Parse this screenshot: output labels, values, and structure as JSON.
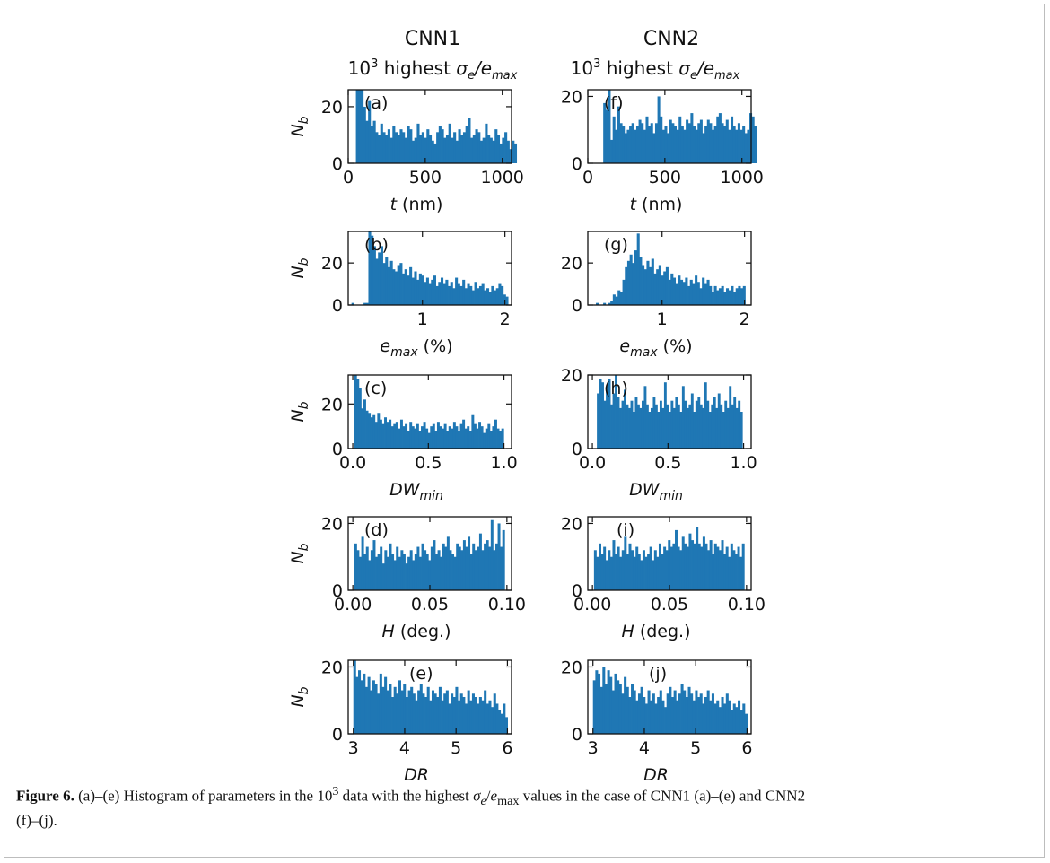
{
  "column_headers": [
    {
      "title": "CNN1",
      "subtitle_prefix": "10",
      "subtitle_sup": "3",
      "subtitle_mid": " highest ",
      "subtitle_sigma": "σ",
      "subtitle_e_sub": "e",
      "subtitle_slash": "/e",
      "subtitle_max_sub": "max"
    },
    {
      "title": "CNN2",
      "subtitle_prefix": "10",
      "subtitle_sup": "3",
      "subtitle_mid": " highest ",
      "subtitle_sigma": "σ",
      "subtitle_e_sub": "e",
      "subtitle_slash": "/e",
      "subtitle_max_sub": "max"
    }
  ],
  "ylabel": {
    "main": "N",
    "sub": "b"
  },
  "chart_data": [
    {
      "type": "bar",
      "panel": "(a)",
      "xlabel": "t (nm)",
      "xlim": [
        0,
        1060
      ],
      "ylim": [
        0,
        26
      ],
      "xticks": [
        0,
        500,
        1000
      ],
      "yticks": [
        0,
        20
      ],
      "x_start": 50,
      "bin_width": 15.8,
      "values": [
        26,
        26,
        26,
        20,
        15,
        22,
        13,
        15,
        11,
        10,
        14,
        11,
        10,
        12,
        9,
        13,
        11,
        10,
        12,
        11,
        9,
        13,
        12,
        8,
        9,
        14,
        10,
        11,
        9,
        12,
        10,
        8,
        7,
        11,
        13,
        12,
        9,
        10,
        14,
        9,
        11,
        8,
        12,
        10,
        11,
        13,
        16,
        9,
        10,
        12,
        11,
        8,
        9,
        14,
        10,
        9,
        8,
        12,
        10,
        7,
        9,
        11,
        8,
        5,
        8,
        7
      ]
    },
    {
      "type": "bar",
      "panel": "(f)",
      "xlabel": "t (nm)",
      "xlim": [
        0,
        1060
      ],
      "ylim": [
        0,
        22
      ],
      "xticks": [
        0,
        500,
        1000
      ],
      "yticks": [
        0,
        20
      ],
      "x_start": 100,
      "bin_width": 15.3,
      "values": [
        18,
        16,
        22,
        7,
        14,
        10,
        17,
        12,
        11,
        9,
        10,
        11,
        12,
        10,
        11,
        13,
        12,
        10,
        14,
        11,
        12,
        9,
        12,
        20,
        14,
        10,
        11,
        9,
        13,
        12,
        11,
        10,
        14,
        11,
        10,
        13,
        12,
        15,
        11,
        10,
        12,
        13,
        9,
        11,
        13,
        12,
        10,
        11,
        14,
        15,
        12,
        11,
        13,
        10,
        14,
        11,
        10,
        12,
        10,
        11,
        9,
        10,
        15,
        14,
        11
      ]
    },
    {
      "type": "bar",
      "panel": "(b)",
      "xlabel": "e_max (%)",
      "xlim": [
        0.1,
        2.08
      ],
      "ylim": [
        0,
        35
      ],
      "xticks": [
        1,
        2
      ],
      "yticks": [
        0,
        20
      ],
      "x_start": 0.14,
      "bin_width": 0.0292,
      "values": [
        1,
        0,
        0,
        0,
        0,
        1,
        1,
        35,
        33,
        28,
        22,
        25,
        28,
        20,
        23,
        18,
        21,
        17,
        16,
        19,
        20,
        15,
        17,
        14,
        18,
        13,
        16,
        12,
        15,
        14,
        11,
        13,
        10,
        12,
        14,
        9,
        11,
        13,
        10,
        12,
        9,
        11,
        8,
        13,
        10,
        9,
        12,
        8,
        10,
        9,
        7,
        11,
        8,
        9,
        10,
        7,
        8,
        6,
        9,
        7,
        8,
        10,
        9,
        5,
        4
      ]
    },
    {
      "type": "bar",
      "panel": "(g)",
      "xlabel": "e_max (%)",
      "xlim": [
        0.1,
        2.08
      ],
      "ylim": [
        0,
        35
      ],
      "xticks": [
        1,
        2
      ],
      "yticks": [
        0,
        20
      ],
      "x_start": 0.14,
      "bin_width": 0.0292,
      "values": [
        0,
        0,
        1,
        0,
        0,
        1,
        0,
        1,
        2,
        5,
        4,
        7,
        6,
        12,
        18,
        21,
        24,
        20,
        26,
        34,
        23,
        19,
        17,
        21,
        18,
        22,
        15,
        17,
        19,
        14,
        16,
        18,
        12,
        15,
        13,
        10,
        14,
        12,
        11,
        13,
        9,
        12,
        10,
        14,
        11,
        8,
        13,
        10,
        12,
        9,
        6,
        9,
        7,
        8,
        9,
        6,
        8,
        7,
        9,
        6,
        8,
        9,
        8,
        9
      ]
    },
    {
      "type": "bar",
      "panel": "(c)",
      "xlabel": "DW_min",
      "xlim": [
        -0.03,
        1.05
      ],
      "ylim": [
        0,
        33
      ],
      "xticks": [
        0.0,
        0.5,
        1.0
      ],
      "yticks": [
        0,
        20
      ],
      "x_start": 0.01,
      "bin_width": 0.0152,
      "values": [
        33,
        31,
        27,
        18,
        22,
        17,
        16,
        14,
        15,
        12,
        16,
        13,
        11,
        14,
        12,
        13,
        10,
        11,
        12,
        9,
        13,
        10,
        11,
        8,
        12,
        10,
        9,
        11,
        8,
        10,
        12,
        9,
        7,
        10,
        11,
        8,
        12,
        10,
        9,
        11,
        8,
        10,
        9,
        12,
        10,
        8,
        11,
        13,
        9,
        10,
        8,
        15,
        11,
        9,
        12,
        10,
        7,
        9,
        11,
        8,
        10,
        13,
        9,
        8,
        9
      ]
    },
    {
      "type": "bar",
      "panel": "(h)",
      "xlabel": "DW_min",
      "xlim": [
        -0.03,
        1.05
      ],
      "ylim": [
        0,
        20
      ],
      "xticks": [
        0.0,
        0.5,
        1.0
      ],
      "yticks": [
        0,
        20
      ],
      "x_start": 0.03,
      "bin_width": 0.0148,
      "values": [
        15,
        19,
        18,
        13,
        17,
        19,
        12,
        15,
        20,
        14,
        11,
        13,
        16,
        12,
        11,
        13,
        10,
        14,
        12,
        11,
        13,
        17,
        12,
        10,
        11,
        14,
        12,
        10,
        13,
        11,
        18,
        12,
        10,
        13,
        11,
        14,
        12,
        10,
        17,
        13,
        11,
        12,
        15,
        10,
        13,
        14,
        12,
        11,
        18,
        13,
        10,
        12,
        14,
        11,
        15,
        12,
        10,
        13,
        11,
        17,
        12,
        14,
        11,
        13,
        10
      ]
    },
    {
      "type": "bar",
      "panel": "(d)",
      "xlabel": "H (deg.)",
      "xlim": [
        -0.003,
        0.103
      ],
      "ylim": [
        0,
        22
      ],
      "xticks": [
        0.0,
        0.05,
        0.1
      ],
      "yticks": [
        0,
        20
      ],
      "x_start": 0.001,
      "bin_width": 0.0015,
      "values": [
        14,
        12,
        10,
        16,
        11,
        13,
        9,
        12,
        15,
        10,
        11,
        13,
        8,
        12,
        10,
        14,
        11,
        9,
        13,
        10,
        12,
        11,
        8,
        10,
        12,
        9,
        11,
        13,
        10,
        14,
        12,
        11,
        9,
        13,
        15,
        11,
        12,
        10,
        14,
        13,
        16,
        12,
        11,
        10,
        14,
        13,
        12,
        15,
        13,
        16,
        11,
        14,
        12,
        13,
        17,
        12,
        14,
        15,
        13,
        21,
        12,
        14,
        20,
        13,
        18
      ]
    },
    {
      "type": "bar",
      "panel": "(i)",
      "xlabel": "H (deg.)",
      "xlim": [
        -0.003,
        0.103
      ],
      "ylim": [
        0,
        22
      ],
      "xticks": [
        0.0,
        0.05,
        0.1
      ],
      "yticks": [
        0,
        20
      ],
      "x_start": 0.001,
      "bin_width": 0.0015,
      "values": [
        12,
        10,
        14,
        11,
        13,
        9,
        12,
        10,
        15,
        11,
        13,
        10,
        12,
        16,
        11,
        14,
        12,
        10,
        13,
        11,
        9,
        12,
        10,
        11,
        13,
        9,
        12,
        10,
        14,
        11,
        13,
        12,
        15,
        13,
        14,
        18,
        13,
        12,
        16,
        14,
        13,
        17,
        15,
        14,
        19,
        14,
        13,
        16,
        14,
        12,
        15,
        11,
        14,
        13,
        12,
        15,
        11,
        13,
        10,
        14,
        12,
        11,
        13,
        10,
        14
      ]
    },
    {
      "type": "bar",
      "panel": "(e)",
      "xlabel": "DR",
      "xlim": [
        2.9,
        6.08
      ],
      "ylim": [
        0,
        22
      ],
      "xticks": [
        3,
        4,
        5,
        6
      ],
      "yticks": [
        0,
        20
      ],
      "x_start": 3.0,
      "bin_width": 0.0462,
      "values": [
        22,
        17,
        19,
        16,
        18,
        14,
        17,
        13,
        16,
        15,
        12,
        18,
        14,
        17,
        13,
        15,
        11,
        14,
        12,
        16,
        13,
        15,
        11,
        13,
        14,
        12,
        10,
        13,
        15,
        12,
        11,
        14,
        10,
        13,
        12,
        11,
        14,
        10,
        12,
        13,
        9,
        12,
        11,
        14,
        10,
        12,
        11,
        9,
        13,
        10,
        12,
        11,
        9,
        11,
        10,
        13,
        9,
        10,
        8,
        12,
        9,
        7,
        6,
        9,
        5
      ]
    },
    {
      "type": "bar",
      "panel": "(j)",
      "xlabel": "DR",
      "xlim": [
        2.9,
        6.08
      ],
      "ylim": [
        0,
        22
      ],
      "xticks": [
        3,
        4,
        5,
        6
      ],
      "yticks": [
        0,
        20
      ],
      "x_start": 3.0,
      "bin_width": 0.0462,
      "values": [
        16,
        19,
        18,
        14,
        20,
        15,
        19,
        17,
        13,
        18,
        16,
        15,
        12,
        17,
        14,
        11,
        15,
        13,
        10,
        12,
        14,
        11,
        9,
        13,
        10,
        12,
        9,
        11,
        13,
        10,
        8,
        12,
        14,
        11,
        13,
        10,
        12,
        15,
        13,
        11,
        14,
        12,
        10,
        13,
        11,
        12,
        9,
        11,
        13,
        10,
        12,
        9,
        10,
        8,
        11,
        9,
        12,
        10,
        7,
        9,
        8,
        10,
        7,
        9,
        6
      ]
    }
  ],
  "caption": {
    "label": "Figure 6.",
    "text1": " (a)–(e) Histogram of parameters in the 10",
    "sup": "3",
    "text2": " data with the highest ",
    "sigma": "σ",
    "sub_e": "e",
    "slash": "/",
    "e": "e",
    "sub_max": "max",
    "text3": " values in the case of CNN1 (a)–(e) and CNN2",
    "text4": "(f)–(j)."
  }
}
